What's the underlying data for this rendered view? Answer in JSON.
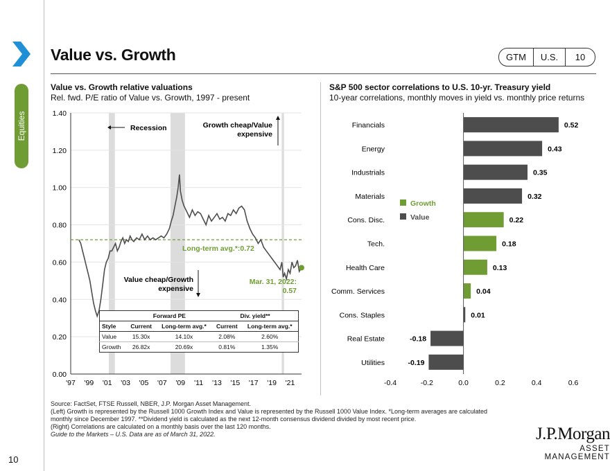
{
  "header": {
    "title": "Value vs. Growth",
    "badges": [
      "GTM",
      "U.S.",
      "10"
    ],
    "section": "Equities",
    "page_number": "10"
  },
  "left_panel": {
    "title": "Value vs. Growth relative valuations",
    "subtitle": "Rel. fwd. P/E ratio of Value vs. Growth, 1997 - present",
    "annotations": {
      "recession": "Recession",
      "growth_cheap_1": "Growth cheap/Value",
      "growth_cheap_2": "expensive",
      "value_cheap_1": "Value cheap/Growth",
      "value_cheap_2": "expensive",
      "long_term_avg": "Long-term avg.*:0.72",
      "latest_1": "Mar. 31, 2022:",
      "latest_2": "0.57"
    },
    "table": {
      "group_headers": [
        "Forward PE",
        "Div. yield**"
      ],
      "columns": [
        "Style",
        "Current",
        "Long-term avg.*",
        "Current",
        "Long-term avg.*"
      ],
      "rows": [
        [
          "Value",
          "15.30x",
          "14.10x",
          "2.08%",
          "2.60%"
        ],
        [
          "Growth",
          "26.82x",
          "20.69x",
          "0.81%",
          "1.35%"
        ]
      ]
    }
  },
  "right_panel": {
    "title": "S&P 500 sector correlations to U.S. 10-yr. Treasury yield",
    "subtitle": "10-year correlations, monthly moves in yield vs. monthly price returns"
  },
  "footnotes": [
    "Source: FactSet, FTSE Russell, NBER, J.P. Morgan Asset Management.",
    "(Left) Growth is represented by the Russell 1000 Growth Index and Value is represented by the Russell 1000 Value Index. *Long-term averages are calculated monthly since December 1997. **Dividend yield is calculated as the next 12-month consensus dividend divided by most recent price.",
    "(Right) Correlations are calculated on a monthly basis over the last 120 months.",
    "Guide to the Markets – U.S. Data are as of March 31, 2022."
  ],
  "logo": {
    "main": "J.P.Morgan",
    "sub": "ASSET MANAGEMENT"
  },
  "colors": {
    "growth": "#6f9d34",
    "value": "#4d4d4d",
    "recession": "#dcdcdc",
    "avg_line": "#6f9d34"
  },
  "chart_data": [
    {
      "type": "line",
      "xlabel": "",
      "ylabel": "",
      "x_tick_labels": [
        "'97",
        "'99",
        "'01",
        "'03",
        "'05",
        "'07",
        "'09",
        "'11",
        "'13",
        "'15",
        "'17",
        "'19",
        "'21"
      ],
      "x_tick_years": [
        1997,
        1999,
        2001,
        2003,
        2005,
        2007,
        2009,
        2011,
        2013,
        2015,
        2017,
        2019,
        2021
      ],
      "xlim": [
        1997.0,
        2022.25
      ],
      "ylim": [
        0,
        1.4
      ],
      "y_ticks": [
        0,
        0.2,
        0.4,
        0.6,
        0.8,
        1.0,
        1.2,
        1.4
      ],
      "y_tick_labels": [
        "0.00",
        "0.20",
        "0.40",
        "0.60",
        "0.80",
        "1.00",
        "1.20",
        "1.40"
      ],
      "long_term_avg": 0.72,
      "recessions": [
        [
          2001.17,
          2001.83
        ],
        [
          2007.92,
          2009.5
        ],
        [
          2020.08,
          2020.33
        ]
      ],
      "series": [
        {
          "x": [
            1997.9,
            1998.1,
            1998.3,
            1998.5,
            1998.7,
            1998.9,
            1999.1,
            1999.3,
            1999.5,
            1999.7,
            1999.9,
            2000.1,
            2000.3,
            2000.5,
            2000.7,
            2000.9,
            2001.1,
            2001.3,
            2001.5,
            2001.7,
            2001.9,
            2002.1,
            2002.3,
            2002.5,
            2002.7,
            2002.9,
            2003.1,
            2003.3,
            2003.5,
            2003.7,
            2003.9,
            2004.2,
            2004.5,
            2004.8,
            2005.1,
            2005.4,
            2005.7,
            2006.0,
            2006.3,
            2006.6,
            2006.9,
            2007.2,
            2007.5,
            2007.8,
            2008.0,
            2008.2,
            2008.4,
            2008.6,
            2008.75,
            2008.9,
            2009.0,
            2009.2,
            2009.4,
            2009.6,
            2009.8,
            2010.0,
            2010.3,
            2010.6,
            2010.9,
            2011.2,
            2011.5,
            2011.8,
            2012.1,
            2012.4,
            2012.7,
            2013.0,
            2013.3,
            2013.6,
            2013.9,
            2014.2,
            2014.5,
            2014.8,
            2015.1,
            2015.4,
            2015.7,
            2016.0,
            2016.3,
            2016.6,
            2016.9,
            2017.2,
            2017.5,
            2017.8,
            2018.1,
            2018.4,
            2018.7,
            2019.0,
            2019.3,
            2019.6,
            2019.9,
            2020.1,
            2020.25,
            2020.4,
            2020.6,
            2020.8,
            2021.0,
            2021.2,
            2021.4,
            2021.6,
            2021.8,
            2022.0,
            2022.25
          ],
          "y": [
            0.72,
            0.7,
            0.66,
            0.62,
            0.58,
            0.54,
            0.5,
            0.44,
            0.38,
            0.34,
            0.31,
            0.34,
            0.4,
            0.48,
            0.56,
            0.6,
            0.62,
            0.66,
            0.66,
            0.68,
            0.7,
            0.66,
            0.68,
            0.71,
            0.73,
            0.7,
            0.72,
            0.71,
            0.74,
            0.72,
            0.71,
            0.73,
            0.72,
            0.75,
            0.72,
            0.74,
            0.72,
            0.73,
            0.72,
            0.73,
            0.74,
            0.73,
            0.75,
            0.78,
            0.82,
            0.85,
            0.9,
            0.95,
            1.0,
            1.07,
            0.98,
            0.93,
            0.9,
            0.88,
            0.86,
            0.84,
            0.88,
            0.85,
            0.87,
            0.86,
            0.83,
            0.8,
            0.85,
            0.82,
            0.84,
            0.86,
            0.83,
            0.84,
            0.82,
            0.86,
            0.85,
            0.88,
            0.86,
            0.89,
            0.9,
            0.88,
            0.82,
            0.78,
            0.75,
            0.73,
            0.7,
            0.72,
            0.68,
            0.66,
            0.64,
            0.62,
            0.6,
            0.58,
            0.56,
            0.6,
            0.52,
            0.54,
            0.51,
            0.56,
            0.54,
            0.6,
            0.57,
            0.58,
            0.61,
            0.55,
            0.57
          ],
          "color": "#4d4d4d"
        }
      ],
      "latest_point": {
        "x": 2022.25,
        "y": 0.57
      }
    },
    {
      "type": "bar",
      "orientation": "horizontal",
      "xlabel": "",
      "ylabel": "",
      "categories": [
        "Financials",
        "Energy",
        "Industrials",
        "Materials",
        "Cons. Disc.",
        "Tech.",
        "Health Care",
        "Comm. Services",
        "Cons. Staples",
        "Real Estate",
        "Utilities"
      ],
      "values": [
        0.52,
        0.43,
        0.35,
        0.32,
        0.22,
        0.18,
        0.13,
        0.04,
        0.01,
        -0.18,
        -0.19
      ],
      "value_labels": [
        "0.52",
        "0.43",
        "0.35",
        "0.32",
        "0.22",
        "0.18",
        "0.13",
        "0.04",
        "0.01",
        "-0.18",
        "-0.19"
      ],
      "style": [
        "Value",
        "Value",
        "Value",
        "Value",
        "Growth",
        "Growth",
        "Growth",
        "Growth",
        "Value",
        "Value",
        "Value"
      ],
      "legend": [
        {
          "name": "Growth",
          "color": "#6f9d34"
        },
        {
          "name": "Value",
          "color": "#4d4d4d"
        }
      ],
      "legend_position": "left",
      "xlim": [
        -0.4,
        0.6
      ],
      "x_ticks": [
        -0.4,
        -0.2,
        0.0,
        0.2,
        0.4,
        0.6
      ],
      "x_tick_labels": [
        "-0.4",
        "-0.2",
        "0.0",
        "0.2",
        "0.4",
        "0.6"
      ]
    }
  ]
}
